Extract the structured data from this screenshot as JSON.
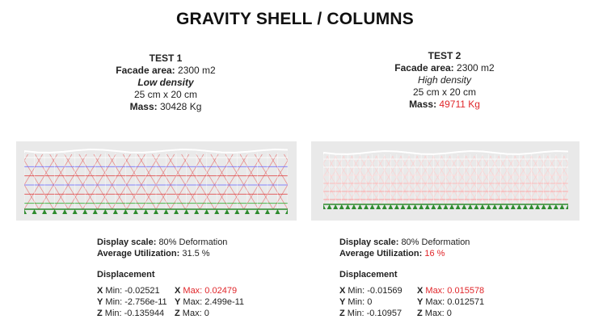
{
  "title": "GRAVITY SHELL / COLUMNS",
  "tests": [
    {
      "heading": "TEST 1",
      "facade_label": "Facade area:",
      "facade_value": "2300 m2",
      "density": "Low density",
      "section": "25 cm x 20 cm",
      "mass_label": "Mass:",
      "mass_value": "30428 Kg",
      "display_scale_label": "Display scale:",
      "display_scale_value": "80% Deformation",
      "avg_util_label": "Average Utilization:",
      "avg_util_value": "31.5 %",
      "displacement_title": "Displacement",
      "x_min_label": "X",
      "x_min_value": "Min: -0.02521",
      "x_max_label": "X",
      "x_max_value": "Max: 0.02479",
      "y_min_label": "Y",
      "y_min_value": "Min: -2.756e-11",
      "y_max_label": "Y",
      "y_max_value": "Max: 2.499e-11",
      "z_min_label": "Z",
      "z_min_value": "Min: -0.135944",
      "z_max_label": "Z",
      "z_max_value": "Max: 0"
    },
    {
      "heading": "TEST 2",
      "facade_label": "Facade area:",
      "facade_value": "2300 m2",
      "density": "High density",
      "section": "25 cm x 20 cm",
      "mass_label": "Mass:",
      "mass_value": "49711 Kg",
      "display_scale_label": "Display scale:",
      "display_scale_value": "80% Deformation",
      "avg_util_label": "Average Utilization:",
      "avg_util_value": "16 %",
      "displacement_title": "Displacement",
      "x_min_label": "X",
      "x_min_value": "Min: -0.01569",
      "x_max_label": "X",
      "x_max_value": "Max: 0.015578",
      "y_min_label": "Y",
      "y_min_value": "Min: 0",
      "y_max_label": "Y",
      "y_max_value": "Max: 0.012571",
      "z_min_label": "Z",
      "z_min_value": "Min: -0.10957",
      "z_max_label": "Z",
      "z_max_value": "Max: 0"
    }
  ],
  "colors": {
    "highlight": "#e0262a",
    "panel_bg": "#e9e9e9",
    "support": "#2e8b2e"
  }
}
